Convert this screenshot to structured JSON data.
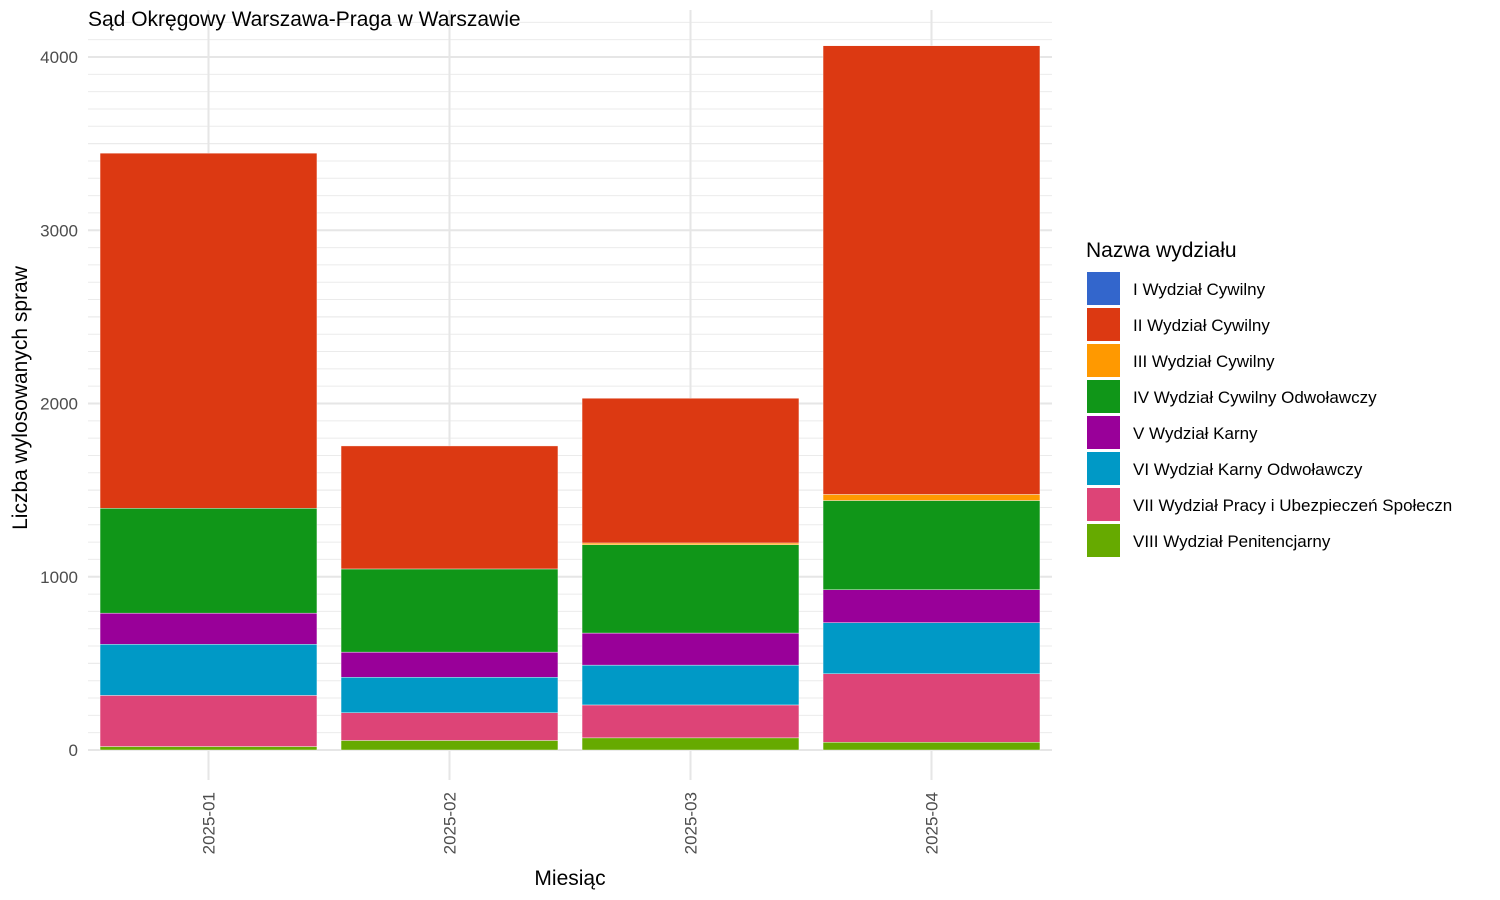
{
  "chart_data": {
    "type": "bar",
    "stacked": true,
    "title": "Sąd Okręgowy Warszawa-Praga w Warszawie",
    "xlabel": "Miesiąc",
    "ylabel": "Liczba wylosowanych spraw",
    "categories": [
      "2025-01",
      "2025-02",
      "2025-03",
      "2025-04"
    ],
    "ylim": [
      0,
      4200
    ],
    "yticks": [
      0,
      1000,
      2000,
      3000,
      4000
    ],
    "grid": true,
    "legend": {
      "title": "Nazwa wydziału",
      "position": "right"
    },
    "series": [
      {
        "name": "I Wydział Cywilny",
        "color": "#3366cc",
        "values": [
          0,
          0,
          0,
          0
        ]
      },
      {
        "name": "II Wydział Cywilny",
        "color": "#dc3912",
        "values": [
          2050,
          710,
          835,
          2590
        ]
      },
      {
        "name": "III Wydział Cywilny",
        "color": "#ff9900",
        "values": [
          0,
          0,
          10,
          35
        ]
      },
      {
        "name": "IV Wydział Cywilny Odwoławczy",
        "color": "#109618",
        "values": [
          605,
          480,
          510,
          515
        ]
      },
      {
        "name": "V Wydział Karny",
        "color": "#990099",
        "values": [
          180,
          145,
          185,
          190
        ]
      },
      {
        "name": "VI Wydział Karny Odwoławczy",
        "color": "#0099c6",
        "values": [
          295,
          205,
          230,
          295
        ]
      },
      {
        "name": "VII Wydział Pracy i Ubezpieczeń Społeczn",
        "color": "#dd4477",
        "values": [
          295,
          160,
          190,
          395
        ]
      },
      {
        "name": "VIII Wydział Penitencjarny",
        "color": "#66aa00",
        "values": [
          20,
          55,
          70,
          45
        ]
      }
    ]
  }
}
